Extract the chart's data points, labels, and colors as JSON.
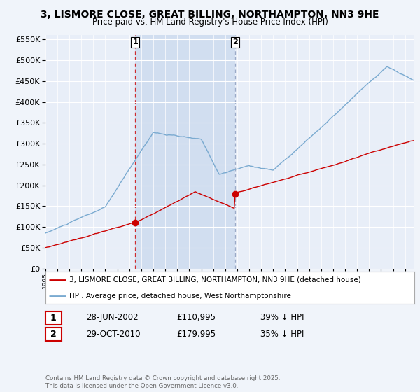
{
  "title": "3, LISMORE CLOSE, GREAT BILLING, NORTHAMPTON, NN3 9HE",
  "subtitle": "Price paid vs. HM Land Registry's House Price Index (HPI)",
  "background_color": "#f0f4fa",
  "plot_background": "#e8eef8",
  "highlight_color": "#d0dff0",
  "ylim": [
    0,
    560000
  ],
  "yticks": [
    0,
    50000,
    100000,
    150000,
    200000,
    250000,
    300000,
    350000,
    400000,
    450000,
    500000,
    550000
  ],
  "legend_label_red": "3, LISMORE CLOSE, GREAT BILLING, NORTHAMPTON, NN3 9HE (detached house)",
  "legend_label_blue": "HPI: Average price, detached house, West Northamptonshire",
  "annotation1_date": "28-JUN-2002",
  "annotation1_price": "£110,995",
  "annotation1_hpi": "39% ↓ HPI",
  "annotation2_date": "29-OCT-2010",
  "annotation2_price": "£179,995",
  "annotation2_hpi": "35% ↓ HPI",
  "footnote": "Contains HM Land Registry data © Crown copyright and database right 2025.\nThis data is licensed under the Open Government Licence v3.0.",
  "red_color": "#cc0000",
  "blue_color": "#7aaad0",
  "sale1_x": 2002.49,
  "sale1_y": 110995,
  "sale2_x": 2010.83,
  "sale2_y": 179995,
  "xmin": 1995.0,
  "xmax": 2025.75
}
